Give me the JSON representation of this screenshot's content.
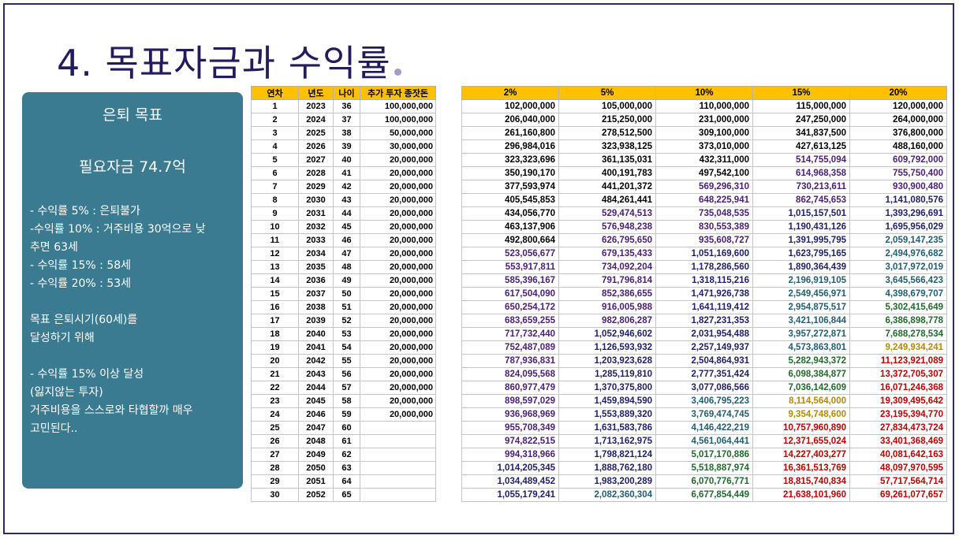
{
  "title": "4. 목표자금과 수익률",
  "panel": {
    "heading": "은퇴 목표",
    "required_funds": "필요자금 74.7억",
    "lines": [
      "- 수익률 5% : 은퇴불가",
      "-수익률 10% : 거주비용 30억으로 낮",
      "추면 63세",
      "- 수익률 15% : 58세",
      "- 수익률 20% : 53세",
      "",
      "목표 은퇴시기(60세)를",
      "달성하기 위해",
      "",
      " - 수익률 15% 이상 달성",
      "  (잃지않는 투자)",
      "거주비용을 스스로와 타협할까 매우",
      "고민된다.."
    ]
  },
  "table_left": {
    "headers": [
      "연차",
      "년도",
      "나이",
      "추가 투자 종잣돈"
    ],
    "rows": [
      [
        "1",
        "2023",
        "36",
        "100,000,000"
      ],
      [
        "2",
        "2024",
        "37",
        "100,000,000"
      ],
      [
        "3",
        "2025",
        "38",
        "50,000,000"
      ],
      [
        "4",
        "2026",
        "39",
        "30,000,000"
      ],
      [
        "5",
        "2027",
        "40",
        "20,000,000"
      ],
      [
        "6",
        "2028",
        "41",
        "20,000,000"
      ],
      [
        "7",
        "2029",
        "42",
        "20,000,000"
      ],
      [
        "8",
        "2030",
        "43",
        "20,000,000"
      ],
      [
        "9",
        "2031",
        "44",
        "20,000,000"
      ],
      [
        "10",
        "2032",
        "45",
        "20,000,000"
      ],
      [
        "11",
        "2033",
        "46",
        "20,000,000"
      ],
      [
        "12",
        "2034",
        "47",
        "20,000,000"
      ],
      [
        "13",
        "2035",
        "48",
        "20,000,000"
      ],
      [
        "14",
        "2036",
        "49",
        "20,000,000"
      ],
      [
        "15",
        "2037",
        "50",
        "20,000,000"
      ],
      [
        "16",
        "2038",
        "51",
        "20,000,000"
      ],
      [
        "17",
        "2039",
        "52",
        "20,000,000"
      ],
      [
        "18",
        "2040",
        "53",
        "20,000,000"
      ],
      [
        "19",
        "2041",
        "54",
        "20,000,000"
      ],
      [
        "20",
        "2042",
        "55",
        "20,000,000"
      ],
      [
        "21",
        "2043",
        "56",
        "20,000,000"
      ],
      [
        "22",
        "2044",
        "57",
        "20,000,000"
      ],
      [
        "23",
        "2045",
        "58",
        "20,000,000"
      ],
      [
        "24",
        "2046",
        "59",
        "20,000,000"
      ],
      [
        "25",
        "2047",
        "60",
        ""
      ],
      [
        "26",
        "2048",
        "61",
        ""
      ],
      [
        "27",
        "2049",
        "62",
        ""
      ],
      [
        "28",
        "2050",
        "63",
        ""
      ],
      [
        "29",
        "2051",
        "64",
        ""
      ],
      [
        "30",
        "2052",
        "65",
        ""
      ]
    ]
  },
  "table_right": {
    "headers": [
      "2%",
      "5%",
      "10%",
      "15%",
      "20%"
    ],
    "colors": {
      "black": "#000000",
      "navy": "#1f1f6b",
      "purple": "#4b1e7a",
      "teal": "#1f5f73",
      "green": "#1f6b2a",
      "gold": "#b58a00",
      "red": "#c00000"
    },
    "rows": [
      [
        "102,000,000",
        "105,000,000",
        "110,000,000",
        "115,000,000",
        "120,000,000"
      ],
      [
        "206,040,000",
        "215,250,000",
        "231,000,000",
        "247,250,000",
        "264,000,000"
      ],
      [
        "261,160,800",
        "278,512,500",
        "309,100,000",
        "341,837,500",
        "376,800,000"
      ],
      [
        "296,984,016",
        "323,938,125",
        "373,010,000",
        "427,613,125",
        "488,160,000"
      ],
      [
        "323,323,696",
        "361,135,031",
        "432,311,000",
        "514,755,094",
        "609,792,000"
      ],
      [
        "350,190,170",
        "400,191,783",
        "497,542,100",
        "614,968,358",
        "755,750,400"
      ],
      [
        "377,593,974",
        "441,201,372",
        "569,296,310",
        "730,213,611",
        "930,900,480"
      ],
      [
        "405,545,853",
        "484,261,441",
        "648,225,941",
        "862,745,653",
        "1,141,080,576"
      ],
      [
        "434,056,770",
        "529,474,513",
        "735,048,535",
        "1,015,157,501",
        "1,393,296,691"
      ],
      [
        "463,137,906",
        "576,948,238",
        "830,553,389",
        "1,190,431,126",
        "1,695,956,029"
      ],
      [
        "492,800,664",
        "626,795,650",
        "935,608,727",
        "1,391,995,795",
        "2,059,147,235"
      ],
      [
        "523,056,677",
        "679,135,433",
        "1,051,169,600",
        "1,623,795,165",
        "2,494,976,682"
      ],
      [
        "553,917,811",
        "734,092,204",
        "1,178,286,560",
        "1,890,364,439",
        "3,017,972,019"
      ],
      [
        "585,396,167",
        "791,796,814",
        "1,318,115,216",
        "2,196,919,105",
        "3,645,566,423"
      ],
      [
        "617,504,090",
        "852,386,655",
        "1,471,926,738",
        "2,549,456,971",
        "4,398,679,707"
      ],
      [
        "650,254,172",
        "916,005,988",
        "1,641,119,412",
        "2,954,875,517",
        "5,302,415,649"
      ],
      [
        "683,659,255",
        "982,806,287",
        "1,827,231,353",
        "3,421,106,844",
        "6,386,898,778"
      ],
      [
        "717,732,440",
        "1,052,946,602",
        "2,031,954,488",
        "3,957,272,871",
        "7,688,278,534"
      ],
      [
        "752,487,089",
        "1,126,593,932",
        "2,257,149,937",
        "4,573,863,801",
        "9,249,934,241"
      ],
      [
        "787,936,831",
        "1,203,923,628",
        "2,504,864,931",
        "5,282,943,372",
        "11,123,921,089"
      ],
      [
        "824,095,568",
        "1,285,119,810",
        "2,777,351,424",
        "6,098,384,877",
        "13,372,705,307"
      ],
      [
        "860,977,479",
        "1,370,375,800",
        "3,077,086,566",
        "7,036,142,609",
        "16,071,246,368"
      ],
      [
        "898,597,029",
        "1,459,894,590",
        "3,406,795,223",
        "8,114,564,000",
        "19,309,495,642"
      ],
      [
        "936,968,969",
        "1,553,889,320",
        "3,769,474,745",
        "9,354,748,600",
        "23,195,394,770"
      ],
      [
        "955,708,349",
        "1,631,583,786",
        "4,146,422,219",
        "10,757,960,890",
        "27,834,473,724"
      ],
      [
        "974,822,515",
        "1,713,162,975",
        "4,561,064,441",
        "12,371,655,024",
        "33,401,368,469"
      ],
      [
        "994,318,966",
        "1,798,821,124",
        "5,017,170,886",
        "14,227,403,277",
        "40,081,642,163"
      ],
      [
        "1,014,205,345",
        "1,888,762,180",
        "5,518,887,974",
        "16,361,513,769",
        "48,097,970,595"
      ],
      [
        "1,034,489,452",
        "1,983,200,289",
        "6,070,776,771",
        "18,815,740,834",
        "57,717,564,714"
      ],
      [
        "1,055,179,241",
        "2,082,360,304",
        "6,677,854,449",
        "21,638,101,960",
        "69,261,077,657"
      ]
    ],
    "cell_color_keys": [
      [
        "black",
        "black",
        "black",
        "black",
        "black"
      ],
      [
        "black",
        "black",
        "black",
        "black",
        "black"
      ],
      [
        "black",
        "black",
        "black",
        "black",
        "black"
      ],
      [
        "black",
        "black",
        "black",
        "black",
        "black"
      ],
      [
        "black",
        "black",
        "black",
        "purple",
        "purple"
      ],
      [
        "black",
        "black",
        "black",
        "purple",
        "purple"
      ],
      [
        "black",
        "black",
        "purple",
        "purple",
        "purple"
      ],
      [
        "black",
        "black",
        "purple",
        "purple",
        "navy"
      ],
      [
        "black",
        "purple",
        "purple",
        "navy",
        "navy"
      ],
      [
        "black",
        "purple",
        "purple",
        "navy",
        "navy"
      ],
      [
        "black",
        "purple",
        "purple",
        "navy",
        "teal"
      ],
      [
        "purple",
        "purple",
        "navy",
        "navy",
        "teal"
      ],
      [
        "purple",
        "purple",
        "navy",
        "navy",
        "teal"
      ],
      [
        "purple",
        "purple",
        "navy",
        "teal",
        "teal"
      ],
      [
        "purple",
        "purple",
        "navy",
        "teal",
        "teal"
      ],
      [
        "purple",
        "purple",
        "navy",
        "teal",
        "green"
      ],
      [
        "purple",
        "purple",
        "navy",
        "teal",
        "green"
      ],
      [
        "purple",
        "navy",
        "navy",
        "teal",
        "green"
      ],
      [
        "purple",
        "navy",
        "navy",
        "teal",
        "gold"
      ],
      [
        "purple",
        "navy",
        "navy",
        "green",
        "red"
      ],
      [
        "purple",
        "navy",
        "navy",
        "green",
        "red"
      ],
      [
        "purple",
        "navy",
        "navy",
        "green",
        "red"
      ],
      [
        "purple",
        "navy",
        "teal",
        "gold",
        "red"
      ],
      [
        "purple",
        "navy",
        "teal",
        "gold",
        "red"
      ],
      [
        "purple",
        "navy",
        "teal",
        "red",
        "red"
      ],
      [
        "purple",
        "navy",
        "teal",
        "red",
        "red"
      ],
      [
        "purple",
        "navy",
        "green",
        "red",
        "red"
      ],
      [
        "navy",
        "navy",
        "green",
        "red",
        "red"
      ],
      [
        "navy",
        "navy",
        "green",
        "red",
        "red"
      ],
      [
        "navy",
        "teal",
        "green",
        "red",
        "red"
      ]
    ]
  }
}
